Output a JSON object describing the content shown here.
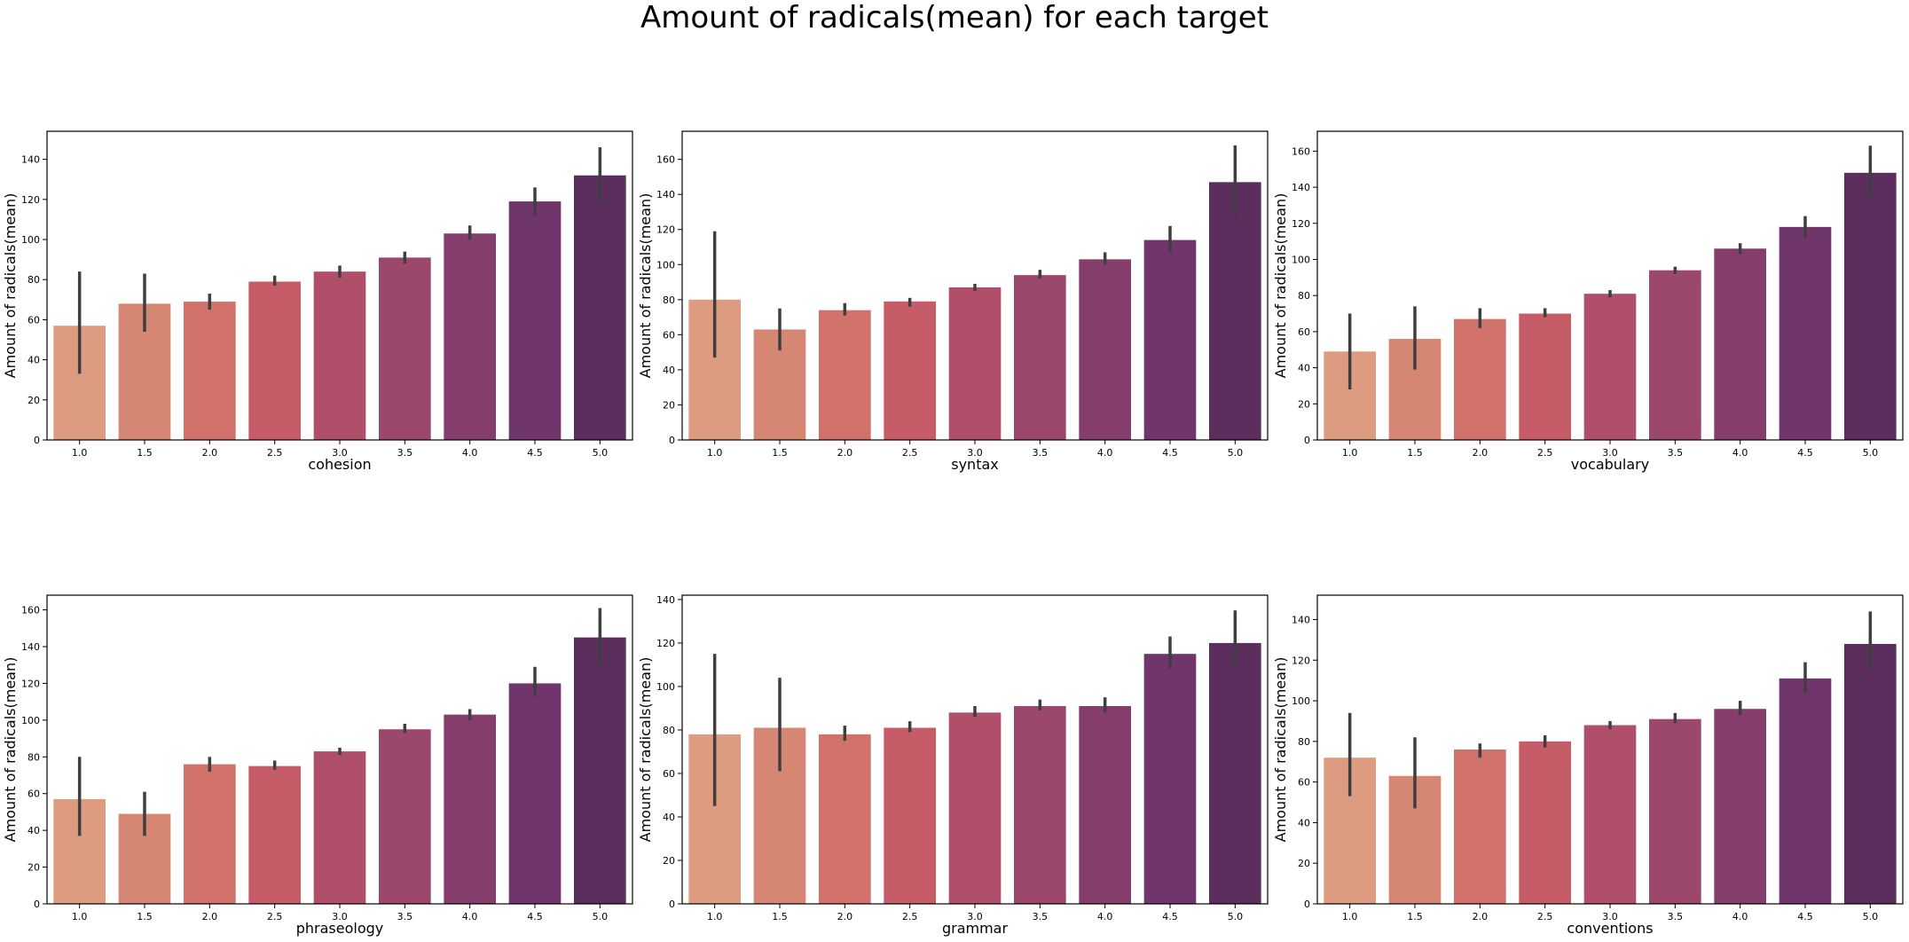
{
  "title": "Amount of radicals(mean) for each target",
  "colors": [
    "#DD9C7F",
    "#D68773",
    "#D0726A",
    "#C55C68",
    "#B04F6A",
    "#9C476C",
    "#853D6C",
    "#70356A",
    "#5B2E5E"
  ],
  "chart_data": [
    {
      "type": "bar",
      "xlabel": "cohesion",
      "ylabel": "Amount of radicals(mean)",
      "categories": [
        "1.0",
        "1.5",
        "2.0",
        "2.5",
        "3.0",
        "3.5",
        "4.0",
        "4.5",
        "5.0"
      ],
      "values": [
        57,
        68,
        69,
        79,
        84,
        91,
        103,
        119,
        132
      ],
      "errors": [
        [
          33,
          84
        ],
        [
          54,
          83
        ],
        [
          65,
          73
        ],
        [
          77,
          82
        ],
        [
          81,
          87
        ],
        [
          88,
          94
        ],
        [
          100,
          107
        ],
        [
          112,
          126
        ],
        [
          118,
          146
        ]
      ],
      "yticks": [
        0,
        20,
        40,
        60,
        80,
        100,
        120,
        140
      ],
      "ylim": [
        0,
        154
      ]
    },
    {
      "type": "bar",
      "xlabel": "syntax",
      "ylabel": "Amount of radicals(mean)",
      "categories": [
        "1.0",
        "1.5",
        "2.0",
        "2.5",
        "3.0",
        "3.5",
        "4.0",
        "4.5",
        "5.0"
      ],
      "values": [
        80,
        63,
        74,
        79,
        87,
        94,
        103,
        114,
        147
      ],
      "errors": [
        [
          47,
          119
        ],
        [
          51,
          75
        ],
        [
          71,
          78
        ],
        [
          76,
          81
        ],
        [
          85,
          89
        ],
        [
          92,
          97
        ],
        [
          100,
          107
        ],
        [
          107,
          122
        ],
        [
          128,
          168
        ]
      ],
      "yticks": [
        0,
        20,
        40,
        60,
        80,
        100,
        120,
        140,
        160
      ],
      "ylim": [
        0,
        176
      ]
    },
    {
      "type": "bar",
      "xlabel": "vocabulary",
      "ylabel": "Amount of radicals(mean)",
      "categories": [
        "1.0",
        "1.5",
        "2.0",
        "2.5",
        "3.0",
        "3.5",
        "4.0",
        "4.5",
        "5.0"
      ],
      "values": [
        49,
        56,
        67,
        70,
        81,
        94,
        106,
        118,
        148
      ],
      "errors": [
        [
          28,
          70
        ],
        [
          39,
          74
        ],
        [
          62,
          73
        ],
        [
          68,
          73
        ],
        [
          79,
          83
        ],
        [
          92,
          96
        ],
        [
          103,
          109
        ],
        [
          112,
          124
        ],
        [
          135,
          163
        ]
      ],
      "yticks": [
        0,
        20,
        40,
        60,
        80,
        100,
        120,
        140,
        160
      ],
      "ylim": [
        0,
        171
      ]
    },
    {
      "type": "bar",
      "xlabel": "phraseology",
      "ylabel": "Amount of radicals(mean)",
      "categories": [
        "1.0",
        "1.5",
        "2.0",
        "2.5",
        "3.0",
        "3.5",
        "4.0",
        "4.5",
        "5.0"
      ],
      "values": [
        57,
        49,
        76,
        75,
        83,
        95,
        103,
        120,
        145
      ],
      "errors": [
        [
          37,
          80
        ],
        [
          37,
          61
        ],
        [
          72,
          80
        ],
        [
          73,
          78
        ],
        [
          81,
          85
        ],
        [
          93,
          98
        ],
        [
          100,
          106
        ],
        [
          113,
          129
        ],
        [
          131,
          161
        ]
      ],
      "yticks": [
        0,
        20,
        40,
        60,
        80,
        100,
        120,
        140,
        160
      ],
      "ylim": [
        0,
        168
      ]
    },
    {
      "type": "bar",
      "xlabel": "grammar",
      "ylabel": "Amount of radicals(mean)",
      "categories": [
        "1.0",
        "1.5",
        "2.0",
        "2.5",
        "3.0",
        "3.5",
        "4.0",
        "4.5",
        "5.0"
      ],
      "values": [
        78,
        81,
        78,
        81,
        88,
        91,
        91,
        115,
        120
      ],
      "errors": [
        [
          45,
          115
        ],
        [
          61,
          104
        ],
        [
          75,
          82
        ],
        [
          79,
          84
        ],
        [
          86,
          91
        ],
        [
          89,
          94
        ],
        [
          88,
          95
        ],
        [
          108,
          123
        ],
        [
          109,
          135
        ]
      ],
      "yticks": [
        0,
        20,
        40,
        60,
        80,
        100,
        120,
        140
      ],
      "ylim": [
        0,
        142
      ]
    },
    {
      "type": "bar",
      "xlabel": "conventions",
      "ylabel": "Amount of radicals(mean)",
      "categories": [
        "1.0",
        "1.5",
        "2.0",
        "2.5",
        "3.0",
        "3.5",
        "4.0",
        "4.5",
        "5.0"
      ],
      "values": [
        72,
        63,
        76,
        80,
        88,
        91,
        96,
        111,
        128
      ],
      "errors": [
        [
          53,
          94
        ],
        [
          47,
          82
        ],
        [
          72,
          79
        ],
        [
          77,
          83
        ],
        [
          86,
          90
        ],
        [
          89,
          94
        ],
        [
          93,
          100
        ],
        [
          104,
          119
        ],
        [
          115,
          144
        ]
      ],
      "yticks": [
        0,
        20,
        40,
        60,
        80,
        100,
        120,
        140
      ],
      "ylim": [
        0,
        152
      ]
    }
  ]
}
